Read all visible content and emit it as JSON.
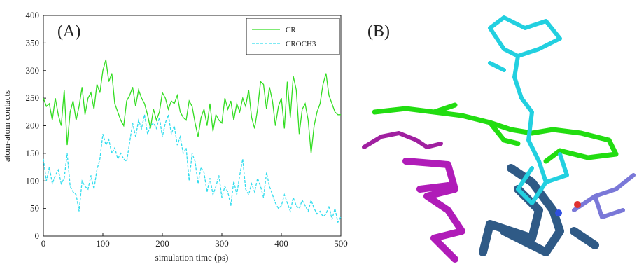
{
  "chart_data": {
    "type": "line",
    "panel_label": "(A)",
    "x_label": "simulation time (ps)",
    "y_label": "atom-atom contacts",
    "xlim": [
      0,
      500
    ],
    "xticks": [
      0,
      100,
      200,
      300,
      400,
      500
    ],
    "ylim": [
      0,
      400
    ],
    "yticks": [
      0,
      50,
      100,
      150,
      200,
      250,
      300,
      350,
      400
    ],
    "x": [
      0,
      5,
      10,
      15,
      20,
      25,
      30,
      35,
      40,
      45,
      50,
      55,
      60,
      65,
      70,
      75,
      80,
      85,
      90,
      95,
      100,
      105,
      110,
      115,
      120,
      125,
      130,
      135,
      140,
      145,
      150,
      155,
      160,
      165,
      170,
      175,
      180,
      185,
      190,
      195,
      200,
      205,
      210,
      215,
      220,
      225,
      230,
      235,
      240,
      245,
      250,
      255,
      260,
      265,
      270,
      275,
      280,
      285,
      290,
      295,
      300,
      305,
      310,
      315,
      320,
      325,
      330,
      335,
      340,
      345,
      350,
      355,
      360,
      365,
      370,
      375,
      380,
      385,
      390,
      395,
      400,
      405,
      410,
      415,
      420,
      425,
      430,
      435,
      440,
      445,
      450,
      455,
      460,
      465,
      470,
      475,
      480,
      485,
      490,
      495,
      500
    ],
    "series": [
      {
        "name": "CR",
        "color": "#33dd22",
        "dash": false,
        "values": [
          250,
          235,
          240,
          210,
          250,
          220,
          200,
          265,
          165,
          225,
          245,
          210,
          235,
          270,
          220,
          250,
          260,
          230,
          275,
          260,
          300,
          320,
          280,
          295,
          240,
          225,
          210,
          200,
          245,
          255,
          270,
          235,
          265,
          250,
          240,
          220,
          195,
          230,
          210,
          225,
          260,
          250,
          230,
          245,
          240,
          255,
          225,
          215,
          210,
          245,
          235,
          205,
          180,
          215,
          230,
          200,
          240,
          190,
          220,
          210,
          205,
          250,
          230,
          245,
          210,
          240,
          225,
          250,
          235,
          265,
          215,
          195,
          230,
          280,
          275,
          230,
          270,
          245,
          200,
          235,
          250,
          195,
          280,
          215,
          290,
          265,
          185,
          230,
          240,
          210,
          150,
          200,
          225,
          240,
          275,
          295,
          255,
          240,
          225,
          220,
          220
        ]
      },
      {
        "name": "CROCH3",
        "color": "#33ddee",
        "dash": true,
        "values": [
          140,
          100,
          125,
          95,
          110,
          120,
          95,
          105,
          150,
          90,
          80,
          75,
          45,
          100,
          90,
          85,
          110,
          85,
          120,
          140,
          185,
          165,
          175,
          150,
          160,
          140,
          150,
          140,
          135,
          170,
          205,
          180,
          210,
          195,
          220,
          185,
          200,
          205,
          195,
          215,
          180,
          205,
          220,
          185,
          200,
          165,
          180,
          150,
          160,
          100,
          150,
          135,
          95,
          125,
          115,
          80,
          105,
          75,
          90,
          110,
          70,
          90,
          80,
          55,
          100,
          75,
          110,
          140,
          85,
          75,
          95,
          80,
          105,
          90,
          70,
          115,
          90,
          75,
          60,
          50,
          55,
          75,
          60,
          45,
          70,
          55,
          50,
          65,
          55,
          45,
          65,
          50,
          40,
          45,
          35,
          40,
          55,
          30,
          50,
          25,
          35
        ]
      }
    ]
  },
  "image_panel": {
    "label": "(B)"
  }
}
